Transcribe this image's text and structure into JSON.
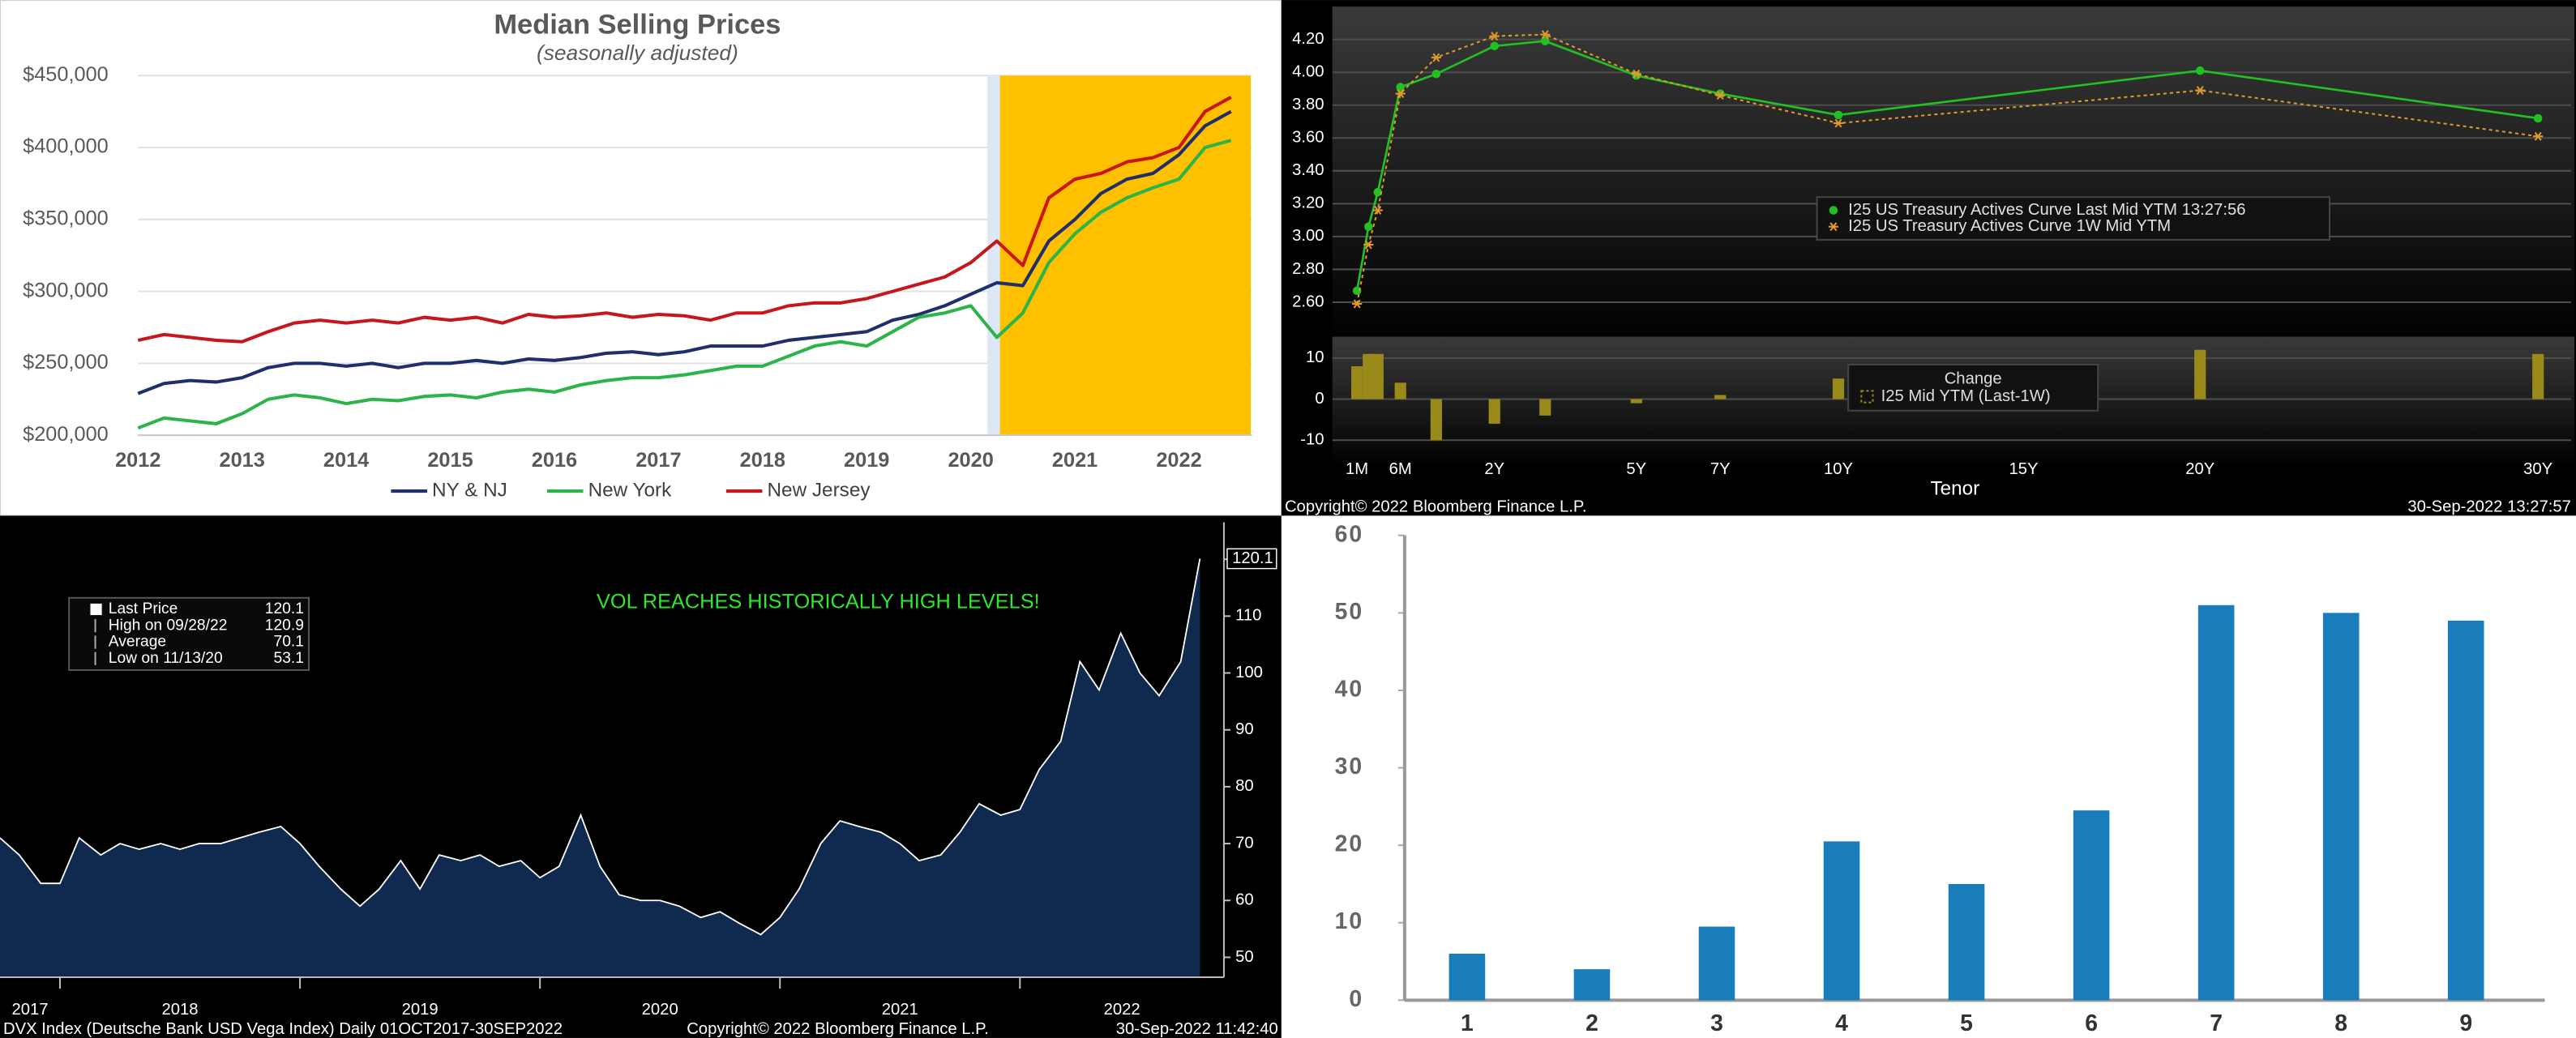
{
  "chart_data": [
    {
      "type": "line",
      "title": "Median Selling Prices",
      "subtitle": "(seasonally adjusted)",
      "x": [
        2012,
        2012.25,
        2012.5,
        2012.75,
        2013,
        2013.25,
        2013.5,
        2013.75,
        2014,
        2014.25,
        2014.5,
        2014.75,
        2015,
        2015.25,
        2015.5,
        2015.75,
        2016,
        2016.25,
        2016.5,
        2016.75,
        2017,
        2017.25,
        2017.5,
        2017.75,
        2018,
        2018.25,
        2018.5,
        2018.75,
        2019,
        2019.25,
        2019.5,
        2019.75,
        2020,
        2020.25,
        2020.5,
        2020.75,
        2021,
        2021.25,
        2021.5,
        2021.75,
        2022,
        2022.25,
        2022.5
      ],
      "series": [
        {
          "name": "NY & NJ",
          "color": "#1f2f6b",
          "values": [
            229000,
            236000,
            238000,
            237000,
            240000,
            247000,
            250000,
            250000,
            248000,
            250000,
            247000,
            250000,
            250000,
            252000,
            250000,
            253000,
            252000,
            254000,
            257000,
            258000,
            256000,
            258000,
            262000,
            262000,
            262000,
            266000,
            268000,
            270000,
            272000,
            280000,
            284000,
            290000,
            298000,
            306000,
            304000,
            335000,
            350000,
            368000,
            378000,
            382000,
            395000,
            415000,
            425000
          ]
        },
        {
          "name": "New York",
          "color": "#2cb34a",
          "values": [
            205000,
            212000,
            210000,
            208000,
            215000,
            225000,
            228000,
            226000,
            222000,
            225000,
            224000,
            227000,
            228000,
            226000,
            230000,
            232000,
            230000,
            235000,
            238000,
            240000,
            240000,
            242000,
            245000,
            248000,
            248000,
            255000,
            262000,
            265000,
            262000,
            272000,
            282000,
            285000,
            290000,
            268000,
            285000,
            320000,
            340000,
            355000,
            365000,
            372000,
            378000,
            400000,
            405000
          ]
        },
        {
          "name": "New Jersey",
          "color": "#c8161d",
          "values": [
            266000,
            270000,
            268000,
            266000,
            265000,
            272000,
            278000,
            280000,
            278000,
            280000,
            278000,
            282000,
            280000,
            282000,
            278000,
            284000,
            282000,
            283000,
            285000,
            282000,
            284000,
            283000,
            280000,
            285000,
            285000,
            290000,
            292000,
            292000,
            295000,
            300000,
            305000,
            310000,
            320000,
            335000,
            318000,
            365000,
            378000,
            382000,
            390000,
            393000,
            400000,
            425000,
            435000
          ]
        }
      ],
      "xlim": [
        2012,
        2022.7
      ],
      "xticks": [
        2012,
        2013,
        2014,
        2015,
        2016,
        2017,
        2018,
        2019,
        2020,
        2021,
        2022
      ],
      "ylim": [
        200000,
        450000
      ],
      "yticks": [
        {
          "value": 200000,
          "label": "$200,000"
        },
        {
          "value": 250000,
          "label": "$250,000"
        },
        {
          "value": 300000,
          "label": "$300,000"
        },
        {
          "value": 350000,
          "label": "$350,000"
        },
        {
          "value": 400000,
          "label": "$400,000"
        },
        {
          "value": 450000,
          "label": "$450,000"
        }
      ],
      "grid": true,
      "legend": "bottom",
      "bands": [
        {
          "from": 2020.16,
          "to": 2020.28,
          "color": "#dce8f5"
        },
        {
          "from": 2020.28,
          "to": 2022.69,
          "color": "#ffc000"
        }
      ]
    },
    {
      "type": "line",
      "x": [
        0.0833,
        0.1667,
        0.25,
        0.5,
        1,
        2,
        3,
        5,
        7,
        10,
        20,
        30
      ],
      "series": [
        {
          "name": "I25 US Treasury Actives Curve Last Mid YTM 13:27:56",
          "color": "#22c022",
          "marker": "circle",
          "values": [
            2.67,
            3.06,
            3.27,
            3.91,
            3.99,
            4.16,
            4.19,
            3.98,
            3.87,
            3.74,
            4.01,
            3.72
          ]
        },
        {
          "name": "I25 US Treasury Actives Curve 1W Mid YTM",
          "color": "#e09a2a",
          "marker": "star",
          "dash": true,
          "values": [
            2.59,
            2.95,
            3.16,
            3.87,
            4.09,
            4.22,
            4.23,
            3.99,
            3.86,
            3.69,
            3.89,
            3.61
          ]
        }
      ],
      "xlim": [
        0,
        31
      ],
      "xticks": [
        {
          "value": 0.0833,
          "label": "1M"
        },
        {
          "value": 0.5,
          "label": "6M"
        },
        {
          "value": 2,
          "label": "2Y"
        },
        {
          "value": 5,
          "label": "5Y"
        },
        {
          "value": 7,
          "label": "7Y"
        },
        {
          "value": 10,
          "label": "10Y"
        },
        {
          "value": 15,
          "label": "15Y"
        },
        {
          "value": 20,
          "label": "20Y"
        },
        {
          "value": 30,
          "label": "30Y"
        }
      ],
      "xlabel": "Tenor",
      "ylim": [
        2.41,
        4.36
      ],
      "yticks": [
        {
          "value": 2.6,
          "label": "2.60"
        },
        {
          "value": 2.8,
          "label": "2.80"
        },
        {
          "value": 3,
          "label": "3.00"
        },
        {
          "value": 3.2,
          "label": "3.20"
        },
        {
          "value": 3.4,
          "label": "3.40"
        },
        {
          "value": 3.6,
          "label": "3.60"
        },
        {
          "value": 3.8,
          "label": "3.80"
        },
        {
          "value": 4,
          "label": "4.00"
        },
        {
          "value": 4.2,
          "label": "4.20"
        }
      ],
      "grid": true,
      "legend": "center",
      "change_panel": {
        "title": "Change",
        "name": "I25 Mid YTM (Last-1W)",
        "color": "#9a8a1a",
        "values": [
          8,
          11,
          11,
          4,
          -10,
          -6,
          -4,
          -1,
          1,
          5,
          12,
          11
        ],
        "ylim": [
          -15,
          15
        ],
        "yticks": [
          -10,
          0,
          10
        ]
      },
      "footer": [
        "Copyright© 2022 Bloomberg Finance L.P.",
        "30-Sep-2022 13:27:57"
      ]
    },
    {
      "type": "area",
      "x": [
        2017.75,
        2017.83,
        2017.92,
        2018,
        2018.08,
        2018.17,
        2018.25,
        2018.33,
        2018.42,
        2018.5,
        2018.58,
        2018.67,
        2018.75,
        2018.83,
        2018.92,
        2019,
        2019.08,
        2019.17,
        2019.25,
        2019.33,
        2019.42,
        2019.5,
        2019.58,
        2019.67,
        2019.75,
        2019.83,
        2019.92,
        2020,
        2020.08,
        2020.17,
        2020.25,
        2020.33,
        2020.42,
        2020.5,
        2020.58,
        2020.67,
        2020.75,
        2020.83,
        2020.92,
        2021,
        2021.08,
        2021.17,
        2021.25,
        2021.33,
        2021.42,
        2021.5,
        2021.58,
        2021.67,
        2021.75,
        2021.83,
        2021.92,
        2022,
        2022.08,
        2022.17,
        2022.25,
        2022.33,
        2022.42,
        2022.5,
        2022.58,
        2022.67,
        2022.75
      ],
      "values": [
        71,
        68,
        63,
        63,
        71,
        68,
        70,
        69,
        70,
        69,
        70,
        70,
        71,
        72,
        73,
        70,
        66,
        62,
        59,
        62,
        67,
        62,
        68,
        67,
        68,
        66,
        67,
        64,
        66,
        75,
        66,
        61,
        60,
        60,
        59,
        57,
        58,
        56,
        54,
        57,
        62,
        70,
        74,
        73,
        72,
        70,
        67,
        68,
        72,
        77,
        75,
        76,
        83,
        88,
        102,
        97,
        107,
        100,
        96,
        102,
        120.1
      ],
      "color": "#0f2a4e",
      "line_color": "#ffffff",
      "xlim": [
        2017.75,
        2022.85
      ],
      "xticks": [
        2017,
        2018,
        2019,
        2020,
        2021,
        2022
      ],
      "ylim": [
        46.5,
        126.5
      ],
      "yticks": [
        50,
        60,
        70,
        80,
        90,
        100,
        110,
        120
      ],
      "annotation": "VOL REACHES HISTORICALLY HIGH LEVELS!",
      "stats": [
        {
          "label": "Last Price",
          "value": 120.1
        },
        {
          "label": "High on 09/28/22",
          "value": 120.9
        },
        {
          "label": "Average",
          "value": 70.1
        },
        {
          "label": "Low on 11/13/20",
          "value": 53.1
        }
      ],
      "footer": [
        "DVX Index (Deutsche Bank USD Vega Index)  Daily 01OCT2017-30SEP2022",
        "Copyright© 2022 Bloomberg Finance L.P.",
        "30-Sep-2022 11:42:40"
      ]
    },
    {
      "type": "bar",
      "categories": [
        "1",
        "2",
        "3",
        "4",
        "5",
        "6",
        "7",
        "8",
        "9"
      ],
      "values": [
        6,
        4,
        9.5,
        20.5,
        15,
        24.5,
        51,
        50,
        49
      ],
      "color": "#1a7dbb",
      "ylim": [
        0,
        60
      ],
      "yticks": [
        0,
        10,
        20,
        30,
        40,
        50,
        60
      ]
    }
  ]
}
